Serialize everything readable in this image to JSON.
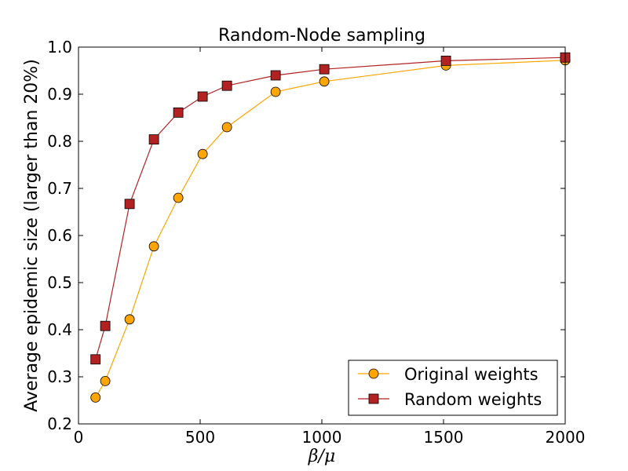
{
  "chart_data": {
    "type": "line",
    "title": "Random-Node sampling",
    "xlabel": "β/μ",
    "ylabel": "Average epidemic size (larger than 20%)",
    "xlim": [
      0,
      2000
    ],
    "ylim": [
      0.2,
      1.0
    ],
    "xticks": [
      0,
      500,
      1000,
      1500,
      2000
    ],
    "yticks": [
      0.2,
      0.3,
      0.4,
      0.5,
      0.6,
      0.7,
      0.8,
      0.9,
      1.0
    ],
    "xtick_labels": [
      "0",
      "500",
      "1000",
      "1500",
      "2000"
    ],
    "ytick_labels": [
      "0.2",
      "0.3",
      "0.4",
      "0.5",
      "0.6",
      "0.7",
      "0.8",
      "0.9",
      "1.0"
    ],
    "legend_position": "bottom-right",
    "series": [
      {
        "name": "Original weights",
        "color": "#ffa500",
        "edge_color": "#000000",
        "marker": "circle",
        "x": [
          70,
          110,
          210,
          310,
          410,
          510,
          610,
          810,
          1010,
          1510,
          2000
        ],
        "y": [
          0.256,
          0.291,
          0.422,
          0.577,
          0.68,
          0.773,
          0.83,
          0.905,
          0.927,
          0.961,
          0.972
        ]
      },
      {
        "name": "Random weights",
        "color": "#b22222",
        "edge_color": "#000000",
        "marker": "square",
        "x": [
          70,
          110,
          210,
          310,
          410,
          510,
          610,
          810,
          1010,
          1510,
          2000
        ],
        "y": [
          0.337,
          0.408,
          0.667,
          0.804,
          0.861,
          0.895,
          0.918,
          0.94,
          0.953,
          0.971,
          0.978
        ]
      }
    ]
  }
}
